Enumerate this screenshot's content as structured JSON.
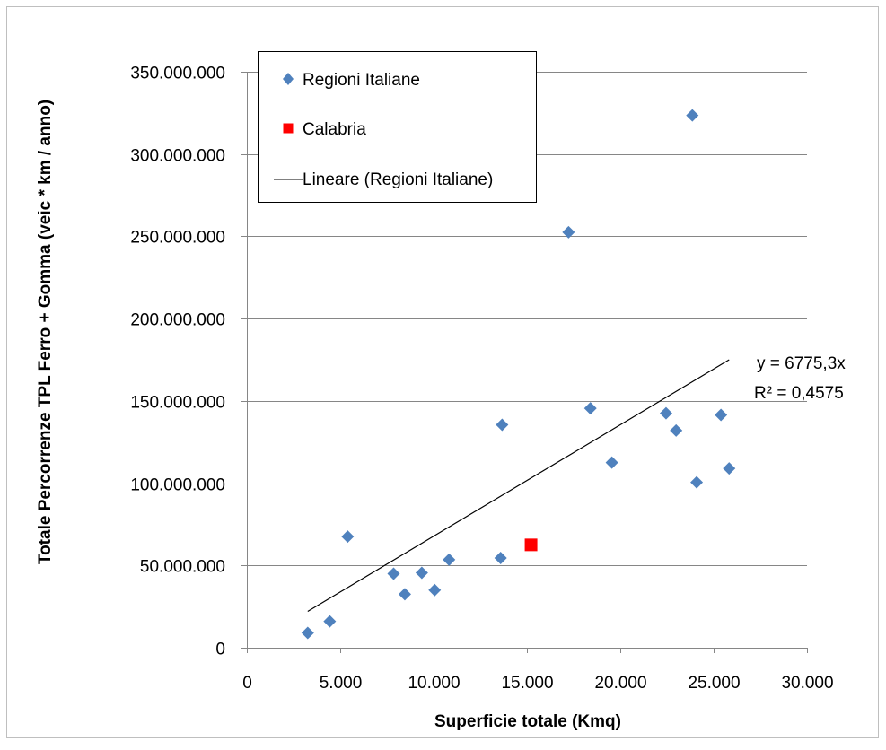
{
  "chart_data": {
    "type": "scatter",
    "xlabel": "Superficie totale (Kmq)",
    "ylabel": "Totale Percorrenze TPL Ferro + Gomma  (veic * km / anno)",
    "xlim": [
      0,
      30000
    ],
    "ylim": [
      0,
      350000000
    ],
    "x_ticks": [
      0,
      5000,
      10000,
      15000,
      20000,
      25000,
      30000
    ],
    "x_tick_labels": [
      "0",
      "5.000",
      "10.000",
      "15.000",
      "20.000",
      "25.000",
      "30.000"
    ],
    "y_ticks": [
      0,
      50000000,
      100000000,
      150000000,
      200000000,
      250000000,
      300000000,
      350000000
    ],
    "y_tick_labels": [
      "0",
      "50.000.000",
      "100.000.000",
      "150.000.000",
      "200.000.000",
      "250.000.000",
      "300.000.000",
      "350.000.000"
    ],
    "grid": "horizontal",
    "legend_position": "top-left",
    "series": [
      {
        "name": "Regioni Italiane",
        "marker": "diamond",
        "color": "#4F81BD",
        "points": [
          {
            "x": 3260,
            "y": 9000000
          },
          {
            "x": 4440,
            "y": 16000000
          },
          {
            "x": 5400,
            "y": 67500000
          },
          {
            "x": 7860,
            "y": 45000000
          },
          {
            "x": 8460,
            "y": 32500000
          },
          {
            "x": 9370,
            "y": 45500000
          },
          {
            "x": 10060,
            "y": 35000000
          },
          {
            "x": 10830,
            "y": 53500000
          },
          {
            "x": 13590,
            "y": 54500000
          },
          {
            "x": 13670,
            "y": 135500000
          },
          {
            "x": 17230,
            "y": 252500000
          },
          {
            "x": 18400,
            "y": 145500000
          },
          {
            "x": 19550,
            "y": 112500000
          },
          {
            "x": 22450,
            "y": 142500000
          },
          {
            "x": 22990,
            "y": 132000000
          },
          {
            "x": 23860,
            "y": 323500000
          },
          {
            "x": 24090,
            "y": 100500000
          },
          {
            "x": 25390,
            "y": 141500000
          },
          {
            "x": 25830,
            "y": 109000000
          }
        ]
      },
      {
        "name": "Calabria",
        "marker": "square",
        "color": "#FF0000",
        "points": [
          {
            "x": 15220,
            "y": 62500000
          }
        ]
      }
    ],
    "trendline": {
      "name": "Lineare (Regioni Italiane)",
      "color": "#000000",
      "slope": 6775.3,
      "x_start": 3260,
      "x_end": 25830,
      "equation": "y = 6775,3x",
      "r_squared": "R² = 0,4575"
    }
  }
}
